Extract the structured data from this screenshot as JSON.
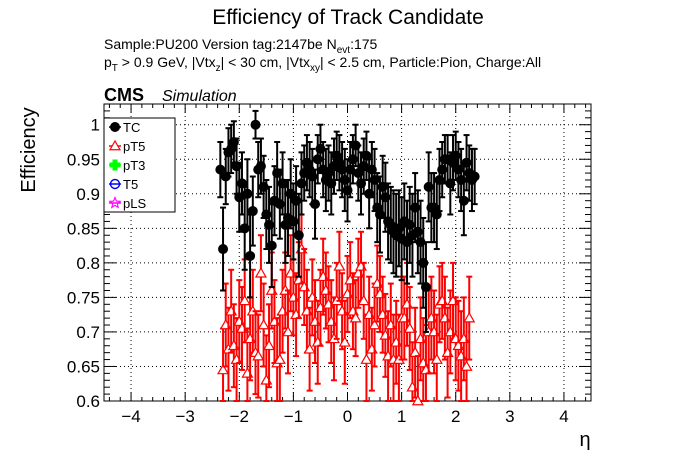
{
  "header": {
    "title": "Efficiency of Track Candidate",
    "line1_prefix": "Sample:PU200   Version tag:2147be  N",
    "line1_sub": "evt",
    "line1_suffix": ":175",
    "line2_p": "p",
    "line2_p_sub": "T",
    "line2_a": " > 0.9 GeV, |Vtx",
    "line2_a_sub": "z",
    "line2_b": "| < 30 cm, |Vtx",
    "line2_b_sub": "xy",
    "line2_c": "| < 2.5 cm, Particle:Pion, Charge:All",
    "cms": "CMS",
    "simulation": "Simulation"
  },
  "colors": {
    "TC": "#000000",
    "pT5": "#ff0000",
    "pT3": "#00ff00",
    "T5": "#0000ff",
    "pLS": "#ff00ff"
  },
  "chart_data": {
    "type": "scatter",
    "title": "Efficiency of Track Candidate",
    "xlabel": "η",
    "ylabel": "Efficiency",
    "xlim": [
      -4.5,
      4.5
    ],
    "ylim": [
      0.6,
      1.03
    ],
    "xticks": [
      "−4",
      "−3",
      "−2",
      "−1",
      "0",
      "1",
      "2",
      "3",
      "4"
    ],
    "yticks": [
      "0.6",
      "0.65",
      "0.7",
      "0.75",
      "0.8",
      "0.85",
      "0.9",
      "0.95",
      "1"
    ],
    "grid": true,
    "legend_position": "top-left",
    "legend": [
      "TC",
      "pT5",
      "pT3",
      "T5",
      "pLS"
    ],
    "series": [
      {
        "name": "TC",
        "marker": "filled-circle",
        "x": [
          -2.35,
          -2.3,
          -2.25,
          -2.2,
          -2.15,
          -2.1,
          -2.05,
          -2.0,
          -1.95,
          -1.9,
          -1.85,
          -1.8,
          -1.75,
          -1.7,
          -1.65,
          -1.6,
          -1.55,
          -1.5,
          -1.45,
          -1.4,
          -1.35,
          -1.3,
          -1.25,
          -1.2,
          -1.15,
          -1.1,
          -1.05,
          -1.0,
          -0.95,
          -0.9,
          -0.85,
          -0.8,
          -0.75,
          -0.7,
          -0.65,
          -0.6,
          -0.55,
          -0.5,
          -0.45,
          -0.4,
          -0.35,
          -0.3,
          -0.25,
          -0.2,
          -0.15,
          -0.1,
          -0.05,
          0.0,
          0.05,
          0.1,
          0.15,
          0.2,
          0.25,
          0.3,
          0.35,
          0.4,
          0.45,
          0.5,
          0.55,
          0.6,
          0.65,
          0.7,
          0.75,
          0.8,
          0.85,
          0.9,
          0.95,
          1.0,
          1.05,
          1.1,
          1.15,
          1.2,
          1.25,
          1.3,
          1.35,
          1.4,
          1.45,
          1.5,
          1.55,
          1.6,
          1.65,
          1.7,
          1.75,
          1.8,
          1.85,
          1.9,
          1.95,
          2.0,
          2.05,
          2.1,
          2.15,
          2.2,
          2.25,
          2.3,
          2.35
        ],
        "y": [
          0.935,
          0.82,
          0.925,
          0.96,
          0.965,
          0.975,
          0.94,
          0.895,
          0.915,
          0.85,
          0.9,
          0.81,
          0.875,
          1.0,
          0.935,
          0.94,
          0.91,
          0.87,
          0.855,
          0.825,
          0.89,
          0.93,
          0.885,
          0.915,
          0.855,
          0.865,
          0.9,
          0.86,
          0.89,
          0.84,
          0.915,
          0.93,
          0.945,
          0.935,
          0.925,
          0.885,
          0.95,
          0.965,
          0.935,
          0.92,
          0.93,
          0.915,
          0.94,
          0.955,
          0.945,
          0.935,
          0.92,
          0.905,
          0.935,
          0.95,
          0.97,
          0.93,
          0.915,
          0.94,
          0.955,
          0.9,
          0.935,
          0.92,
          0.88,
          0.87,
          0.91,
          0.895,
          0.86,
          0.855,
          0.845,
          0.84,
          0.85,
          0.835,
          0.86,
          0.83,
          0.855,
          0.84,
          0.88,
          0.845,
          0.83,
          0.8,
          0.765,
          0.91,
          0.88,
          0.88,
          0.87,
          0.92,
          0.935,
          0.95,
          0.95,
          0.915,
          0.945,
          0.955,
          0.935,
          0.92,
          0.89,
          0.945,
          0.93,
          0.92,
          0.925
        ],
        "err": [
          0.04,
          0.06,
          0.04,
          0.035,
          0.035,
          0.03,
          0.04,
          0.05,
          0.045,
          0.06,
          0.05,
          0.06,
          0.05,
          0.02,
          0.04,
          0.04,
          0.045,
          0.05,
          0.055,
          0.06,
          0.05,
          0.045,
          0.05,
          0.045,
          0.055,
          0.055,
          0.05,
          0.055,
          0.05,
          0.06,
          0.045,
          0.04,
          0.04,
          0.04,
          0.04,
          0.05,
          0.035,
          0.035,
          0.04,
          0.045,
          0.04,
          0.045,
          0.04,
          0.035,
          0.04,
          0.04,
          0.045,
          0.045,
          0.04,
          0.035,
          0.03,
          0.04,
          0.045,
          0.04,
          0.035,
          0.05,
          0.04,
          0.045,
          0.05,
          0.055,
          0.045,
          0.05,
          0.055,
          0.055,
          0.06,
          0.06,
          0.055,
          0.06,
          0.055,
          0.06,
          0.055,
          0.06,
          0.05,
          0.06,
          0.06,
          0.065,
          0.065,
          0.05,
          0.05,
          0.05,
          0.05,
          0.045,
          0.04,
          0.035,
          0.035,
          0.045,
          0.04,
          0.035,
          0.04,
          0.045,
          0.05,
          0.04,
          0.04,
          0.045,
          0.04
        ]
      },
      {
        "name": "pT5",
        "marker": "open-triangle",
        "x": [
          -2.3,
          -2.25,
          -2.2,
          -2.15,
          -2.1,
          -2.05,
          -2.0,
          -1.95,
          -1.9,
          -1.85,
          -1.8,
          -1.75,
          -1.7,
          -1.65,
          -1.6,
          -1.55,
          -1.5,
          -1.45,
          -1.4,
          -1.35,
          -1.3,
          -1.25,
          -1.2,
          -1.15,
          -1.1,
          -1.05,
          -1.0,
          -0.95,
          -0.9,
          -0.85,
          -0.8,
          -0.75,
          -0.7,
          -0.65,
          -0.6,
          -0.55,
          -0.5,
          -0.45,
          -0.4,
          -0.35,
          -0.3,
          -0.25,
          -0.2,
          -0.15,
          -0.1,
          -0.05,
          0.0,
          0.05,
          0.1,
          0.15,
          0.2,
          0.25,
          0.3,
          0.35,
          0.4,
          0.45,
          0.5,
          0.55,
          0.6,
          0.65,
          0.7,
          0.75,
          0.8,
          0.85,
          0.9,
          0.95,
          1.0,
          1.05,
          1.1,
          1.15,
          1.2,
          1.25,
          1.3,
          1.35,
          1.4,
          1.45,
          1.5,
          1.55,
          1.6,
          1.65,
          1.7,
          1.75,
          1.8,
          1.85,
          1.9,
          1.95,
          2.0,
          2.05,
          2.1,
          2.15,
          2.2,
          2.25
        ],
        "y": [
          0.645,
          0.71,
          0.675,
          0.73,
          0.68,
          0.66,
          0.715,
          0.705,
          0.745,
          0.64,
          0.69,
          0.73,
          0.67,
          0.665,
          0.785,
          0.71,
          0.63,
          0.68,
          0.76,
          0.715,
          0.655,
          0.66,
          0.73,
          0.76,
          0.7,
          0.785,
          0.75,
          0.725,
          0.775,
          0.82,
          0.765,
          0.73,
          0.675,
          0.75,
          0.715,
          0.685,
          0.735,
          0.78,
          0.76,
          0.74,
          0.715,
          0.69,
          0.745,
          0.795,
          0.73,
          0.685,
          0.755,
          0.775,
          0.73,
          0.72,
          0.785,
          0.795,
          0.745,
          0.66,
          0.725,
          0.675,
          0.71,
          0.77,
          0.755,
          0.725,
          0.695,
          0.665,
          0.71,
          0.66,
          0.685,
          0.66,
          0.72,
          0.72,
          0.74,
          0.705,
          0.62,
          0.67,
          0.6,
          0.69,
          0.655,
          0.645,
          0.7,
          0.72,
          0.7,
          0.66,
          0.74,
          0.745,
          0.72,
          0.67,
          0.7,
          0.745,
          0.69,
          0.68,
          0.665,
          0.69,
          0.65,
          0.72
        ],
        "err": [
          0.06,
          0.06,
          0.06,
          0.06,
          0.06,
          0.06,
          0.06,
          0.06,
          0.06,
          0.065,
          0.06,
          0.06,
          0.06,
          0.06,
          0.055,
          0.06,
          0.065,
          0.06,
          0.055,
          0.06,
          0.065,
          0.065,
          0.06,
          0.055,
          0.06,
          0.055,
          0.055,
          0.06,
          0.055,
          0.05,
          0.055,
          0.06,
          0.06,
          0.055,
          0.06,
          0.06,
          0.055,
          0.055,
          0.055,
          0.055,
          0.06,
          0.06,
          0.055,
          0.05,
          0.055,
          0.06,
          0.055,
          0.055,
          0.055,
          0.055,
          0.05,
          0.05,
          0.055,
          0.065,
          0.055,
          0.06,
          0.06,
          0.055,
          0.055,
          0.055,
          0.06,
          0.065,
          0.06,
          0.065,
          0.06,
          0.065,
          0.06,
          0.06,
          0.06,
          0.06,
          0.065,
          0.065,
          0.065,
          0.06,
          0.065,
          0.065,
          0.06,
          0.06,
          0.06,
          0.065,
          0.055,
          0.055,
          0.06,
          0.065,
          0.06,
          0.055,
          0.06,
          0.065,
          0.065,
          0.06,
          0.065,
          0.06
        ]
      },
      {
        "name": "pT3",
        "marker": "open-cross",
        "x": [],
        "y": []
      },
      {
        "name": "T5",
        "marker": "open-circle",
        "x": [],
        "y": []
      },
      {
        "name": "pLS",
        "marker": "open-star",
        "x": [],
        "y": []
      }
    ]
  }
}
